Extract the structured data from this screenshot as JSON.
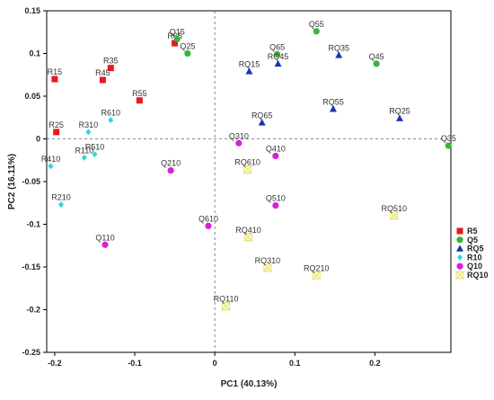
{
  "chart_data": {
    "type": "scatter",
    "title": "",
    "xlabel": "PC1 (40.13%)",
    "ylabel": "PC2 (16.11%)",
    "xlim": [
      -0.21,
      0.295
    ],
    "ylim": [
      -0.25,
      0.15
    ],
    "xticks": [
      -0.2,
      -0.1,
      0,
      0.1,
      0.2
    ],
    "yticks": [
      -0.25,
      -0.2,
      -0.15,
      -0.1,
      -0.05,
      0,
      0.05,
      0.1,
      0.15
    ],
    "xtick_labels": [
      "-0.2",
      "-0.1",
      "0",
      "0.1",
      "0.2"
    ],
    "ytick_labels": [
      "-0.25",
      "-0.2",
      "-0.15",
      "-0.1",
      "-0.05",
      "0",
      "0.05",
      "0.1",
      "0.15"
    ],
    "reference_lines": {
      "x": 0,
      "y": 0,
      "style": "dashed"
    },
    "grid": false,
    "legend_position": "right",
    "series": [
      {
        "name": "R5",
        "marker": "square",
        "color": "#e8191b",
        "points": [
          {
            "label": "R15",
            "x": -0.2,
            "y": 0.07
          },
          {
            "label": "R25",
            "x": -0.198,
            "y": 0.008
          },
          {
            "label": "R35",
            "x": -0.13,
            "y": 0.083
          },
          {
            "label": "R45",
            "x": -0.14,
            "y": 0.069
          },
          {
            "label": "R55",
            "x": -0.094,
            "y": 0.045
          },
          {
            "label": "R65",
            "x": -0.05,
            "y": 0.112
          }
        ]
      },
      {
        "name": "Q5",
        "marker": "circle",
        "color": "#35b53a",
        "points": [
          {
            "label": "Q15",
            "x": -0.047,
            "y": 0.117
          },
          {
            "label": "Q25",
            "x": -0.034,
            "y": 0.1
          },
          {
            "label": "Q35",
            "x": 0.292,
            "y": -0.008
          },
          {
            "label": "Q45",
            "x": 0.202,
            "y": 0.088
          },
          {
            "label": "Q55",
            "x": 0.127,
            "y": 0.126
          },
          {
            "label": "Q65",
            "x": 0.078,
            "y": 0.099
          }
        ]
      },
      {
        "name": "RQ5",
        "marker": "triangle",
        "color": "#1c33b5",
        "points": [
          {
            "label": "RQ15",
            "x": 0.043,
            "y": 0.079
          },
          {
            "label": "RQ25",
            "x": 0.231,
            "y": 0.024
          },
          {
            "label": "RQ35",
            "x": 0.155,
            "y": 0.098
          },
          {
            "label": "RQ45",
            "x": 0.079,
            "y": 0.088
          },
          {
            "label": "RQ55",
            "x": 0.148,
            "y": 0.035
          },
          {
            "label": "RQ65",
            "x": 0.059,
            "y": 0.019
          }
        ]
      },
      {
        "name": "R10",
        "marker": "diamond",
        "color": "#33d4dc",
        "points": [
          {
            "label": "R110",
            "x": -0.163,
            "y": -0.022
          },
          {
            "label": "R210",
            "x": -0.192,
            "y": -0.077
          },
          {
            "label": "R310",
            "x": -0.158,
            "y": 0.008
          },
          {
            "label": "R410",
            "x": -0.205,
            "y": -0.032
          },
          {
            "label": "R510",
            "x": -0.15,
            "y": -0.018
          },
          {
            "label": "R610",
            "x": -0.13,
            "y": 0.022
          }
        ]
      },
      {
        "name": "Q10",
        "marker": "circle",
        "color": "#d81fd8",
        "points": [
          {
            "label": "Q110",
            "x": -0.137,
            "y": -0.124
          },
          {
            "label": "Q210",
            "x": -0.055,
            "y": -0.037
          },
          {
            "label": "Q310",
            "x": 0.03,
            "y": -0.005
          },
          {
            "label": "Q410",
            "x": 0.076,
            "y": -0.02
          },
          {
            "label": "Q510",
            "x": 0.076,
            "y": -0.078
          },
          {
            "label": "Q610",
            "x": -0.008,
            "y": -0.102
          }
        ]
      },
      {
        "name": "RQ10",
        "marker": "hourglass",
        "color": "#e2e27a",
        "points": [
          {
            "label": "RQ110",
            "x": 0.014,
            "y": -0.196
          },
          {
            "label": "RQ210",
            "x": 0.127,
            "y": -0.16
          },
          {
            "label": "RQ310",
            "x": 0.066,
            "y": -0.151
          },
          {
            "label": "RQ410",
            "x": 0.042,
            "y": -0.115
          },
          {
            "label": "RQ510",
            "x": 0.224,
            "y": -0.09
          },
          {
            "label": "RQ610",
            "x": 0.041,
            "y": -0.036
          }
        ]
      }
    ]
  }
}
